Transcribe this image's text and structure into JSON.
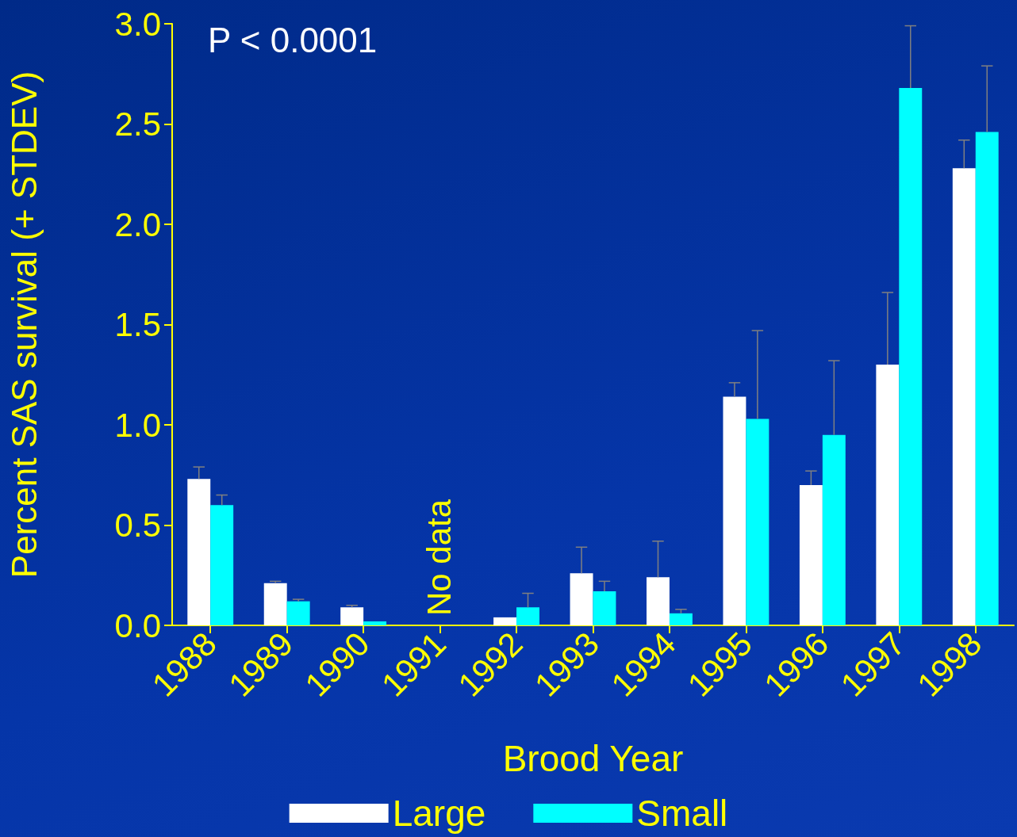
{
  "chart_data": {
    "type": "bar",
    "xlabel": "Brood Year",
    "ylabel": "Percent SAS survival (+ STDEV)",
    "categories": [
      "1988",
      "1989",
      "1990",
      "1991",
      "1992",
      "1993",
      "1994",
      "1995",
      "1996",
      "1997",
      "1998"
    ],
    "series": [
      {
        "name": "Large",
        "color": "#ffffff",
        "values": [
          0.73,
          0.21,
          0.09,
          null,
          0.04,
          0.26,
          0.24,
          1.14,
          0.7,
          1.3,
          2.28
        ],
        "errors": [
          [
            0.73,
            0.79
          ],
          [
            0.21,
            0.22
          ],
          [
            0.09,
            0.1
          ],
          null,
          null,
          [
            0.26,
            0.39
          ],
          [
            0.24,
            0.42
          ],
          [
            1.14,
            1.21
          ],
          [
            0.7,
            0.77
          ],
          [
            1.3,
            1.66
          ],
          [
            2.28,
            2.42
          ]
        ]
      },
      {
        "name": "Small",
        "color": "#00ffff",
        "values": [
          0.6,
          0.12,
          0.02,
          null,
          0.09,
          0.17,
          0.06,
          1.03,
          0.95,
          2.68,
          2.46
        ],
        "errors": [
          [
            0.6,
            0.65
          ],
          [
            0.12,
            0.13
          ],
          null,
          null,
          [
            0.09,
            0.16
          ],
          [
            0.17,
            0.22
          ],
          [
            0.06,
            0.08
          ],
          [
            1.03,
            1.47
          ],
          [
            0.95,
            1.32
          ],
          [
            2.68,
            2.99
          ],
          [
            2.46,
            2.79
          ]
        ]
      }
    ],
    "ylim": [
      0,
      3.0
    ],
    "yticks": [
      {
        "value": 0,
        "label": "0.0"
      },
      0.5,
      {
        "value": 1,
        "label": "1.0"
      },
      1.5,
      {
        "value": 2,
        "label": "2.0"
      },
      2.5,
      {
        "value": 3,
        "label": "3.0"
      }
    ],
    "grid": false,
    "legend": "bottom",
    "annotations": [
      "P < 0.0001",
      "No data"
    ]
  }
}
